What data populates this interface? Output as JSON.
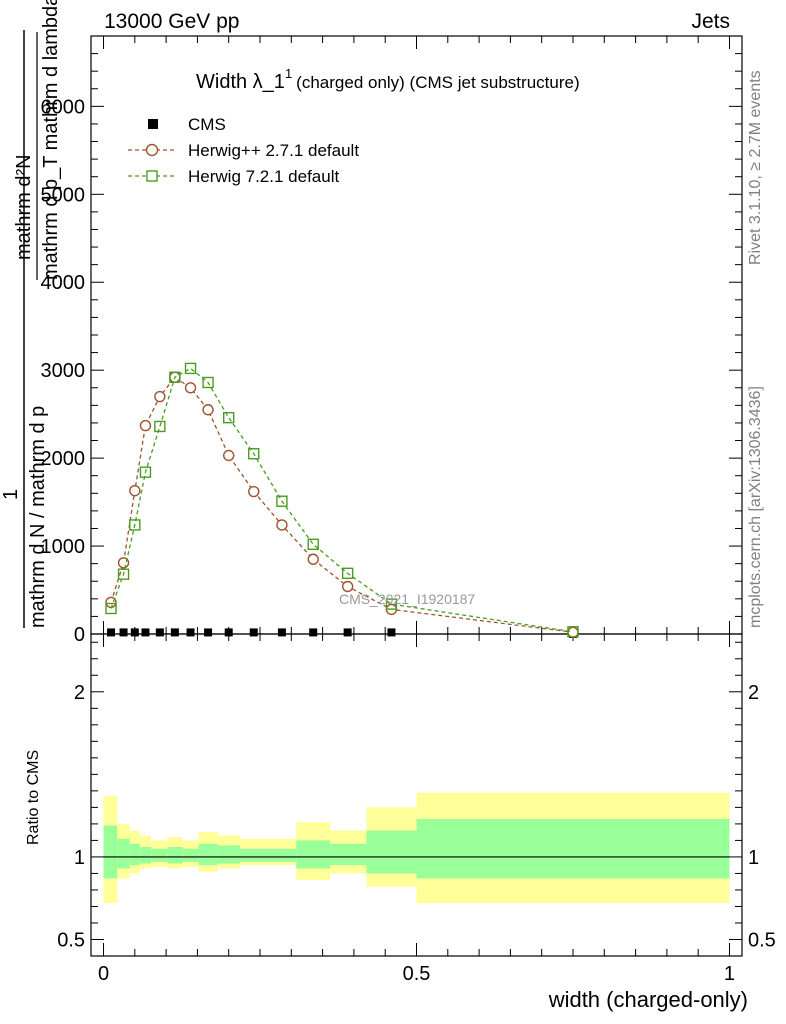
{
  "header": {
    "left": "13000 GeV pp",
    "right": "Jets"
  },
  "title": {
    "main": "Width λ_1",
    "sup": "1",
    "sub": "(charged only) (CMS jet substructure)"
  },
  "side_labels": {
    "rivet": "Rivet 3.1.10, ≥ 2.7M events",
    "mcplots": "mcplots.cern.ch [arXiv:1306.3436]"
  },
  "watermark": "CMS_2021_I1920187",
  "legend": [
    {
      "label": "CMS",
      "marker": "square-filled",
      "color": "#000000"
    },
    {
      "label": "Herwig++ 2.7.1 default",
      "marker": "circle-open",
      "color": "#a0522d"
    },
    {
      "label": "Herwig 7.2.1 default",
      "marker": "square-open",
      "color": "#4a9c1f"
    }
  ],
  "axes": {
    "ylabel_top_numerator": "1",
    "ylabel_top_denominator": "mathrm d N / mathrm d p",
    "ylabel_top_full_a": "mathrm d²N",
    "ylabel_top_full_b": "mathrm d p_T mathrm d lambda",
    "ylabel_bottom": "Ratio to CMS",
    "xlabel": "width (charged-only)"
  },
  "colors": {
    "herwigpp": "#a0522d",
    "herwig7": "#4a9c1f",
    "band_outer": "#ffff99",
    "band_inner": "#99ff99"
  },
  "chart_data": [
    {
      "type": "line",
      "panel": "main",
      "ylim": [
        0,
        6800
      ],
      "xlim": [
        -0.02,
        1.02
      ],
      "yticks": [
        0,
        1000,
        2000,
        3000,
        4000,
        5000,
        6000
      ],
      "ytick_labels": [
        "0",
        "1000",
        "2000",
        "3000",
        "4000",
        "5000",
        "6000"
      ],
      "series": [
        {
          "name": "CMS",
          "x": [
            0.012,
            0.032,
            0.05,
            0.067,
            0.09,
            0.114,
            0.139,
            0.167,
            0.2,
            0.24,
            0.285,
            0.335,
            0.39,
            0.46,
            0.75
          ],
          "y": [
            18,
            18,
            18,
            18,
            18,
            18,
            18,
            18,
            18,
            18,
            18,
            18,
            18,
            18,
            0
          ]
        },
        {
          "name": "Herwig++ 2.7.1 default",
          "x": [
            0.012,
            0.032,
            0.05,
            0.067,
            0.09,
            0.114,
            0.139,
            0.167,
            0.2,
            0.24,
            0.285,
            0.335,
            0.39,
            0.46,
            0.75
          ],
          "y": [
            360,
            810,
            1630,
            2370,
            2700,
            2920,
            2800,
            2550,
            2030,
            1620,
            1240,
            850,
            540,
            280,
            20
          ]
        },
        {
          "name": "Herwig 7.2.1 default",
          "x": [
            0.012,
            0.032,
            0.05,
            0.067,
            0.09,
            0.114,
            0.139,
            0.167,
            0.2,
            0.24,
            0.285,
            0.335,
            0.39,
            0.46,
            0.75
          ],
          "y": [
            290,
            680,
            1240,
            1840,
            2360,
            2920,
            3020,
            2860,
            2460,
            2050,
            1510,
            1020,
            690,
            340,
            25
          ]
        }
      ]
    },
    {
      "type": "area",
      "panel": "ratio",
      "ylim": [
        0.4,
        2.35
      ],
      "xlim": [
        -0.02,
        1.02
      ],
      "yticks": [
        0.5,
        1,
        2
      ],
      "ytick_labels": [
        "0.5",
        "1",
        "2"
      ],
      "xticks": [
        0,
        0.5,
        1
      ],
      "xtick_labels": [
        "0",
        "0.5",
        "1"
      ],
      "bin_edges": [
        0,
        0.022,
        0.042,
        0.058,
        0.076,
        0.102,
        0.126,
        0.152,
        0.182,
        0.218,
        0.262,
        0.308,
        0.362,
        0.42,
        0.5,
        1.0
      ],
      "outer_low": [
        0.72,
        0.87,
        0.9,
        0.93,
        0.94,
        0.93,
        0.94,
        0.91,
        0.93,
        0.95,
        0.95,
        0.86,
        0.9,
        0.82,
        0.72
      ],
      "outer_high": [
        1.37,
        1.2,
        1.16,
        1.13,
        1.1,
        1.12,
        1.1,
        1.15,
        1.13,
        1.11,
        1.11,
        1.21,
        1.16,
        1.3,
        1.39
      ],
      "inner_low": [
        0.87,
        0.93,
        0.95,
        0.96,
        0.97,
        0.96,
        0.97,
        0.95,
        0.96,
        0.97,
        0.97,
        0.93,
        0.95,
        0.9,
        0.87
      ],
      "inner_high": [
        1.19,
        1.11,
        1.08,
        1.06,
        1.05,
        1.06,
        1.05,
        1.08,
        1.07,
        1.05,
        1.05,
        1.1,
        1.08,
        1.16,
        1.23
      ],
      "reference": 1
    }
  ]
}
